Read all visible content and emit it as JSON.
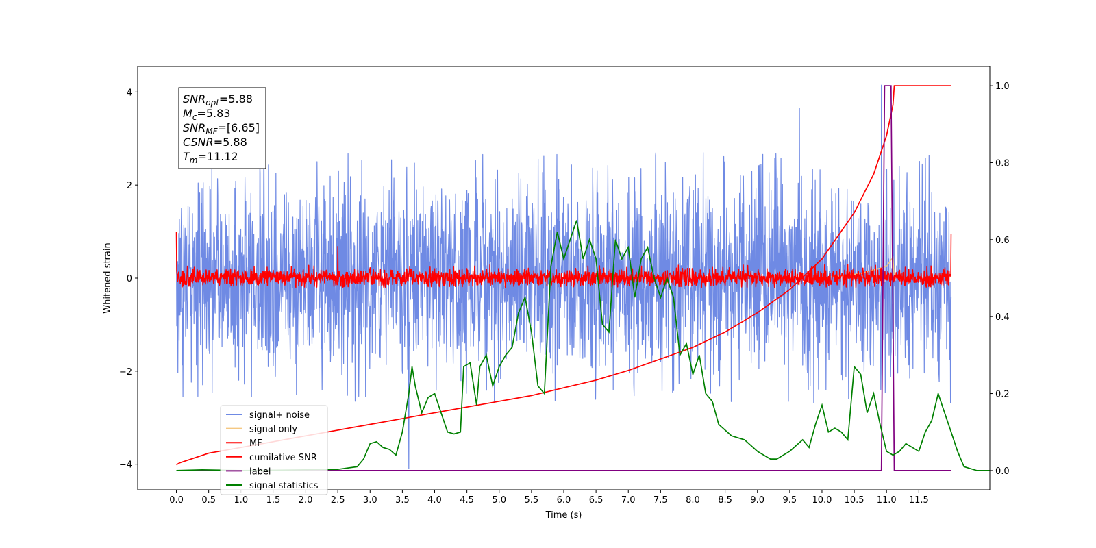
{
  "chart_data": {
    "type": "line",
    "title": "",
    "xlabel": "Time (s)",
    "ylabel": "Whitened strain",
    "y2label": "",
    "xlim": [
      -0.6,
      12.6
    ],
    "ylim": [
      -4.55,
      4.55
    ],
    "y2lim": [
      -0.05,
      1.05
    ],
    "x_ticks": [
      0.0,
      0.5,
      1.0,
      1.5,
      2.0,
      2.5,
      3.0,
      3.5,
      4.0,
      4.5,
      5.0,
      5.5,
      6.0,
      6.5,
      7.0,
      7.5,
      8.0,
      8.5,
      9.0,
      9.5,
      10.0,
      10.5,
      11.0,
      11.5
    ],
    "x_tick_labels": [
      "0.0",
      "0.5",
      "1.0",
      "1.5",
      "2.0",
      "2.5",
      "3.0",
      "3.5",
      "4.0",
      "4.5",
      "5.0",
      "5.5",
      "6.0",
      "6.5",
      "7.0",
      "7.5",
      "8.0",
      "8.5",
      "9.0",
      "9.5",
      "10.0",
      "10.5",
      "11.0",
      "11.5"
    ],
    "y_ticks": [
      4,
      2,
      0,
      -2,
      -4
    ],
    "y_tick_labels": [
      "4",
      "2",
      "0",
      "−2",
      "−4"
    ],
    "y2_ticks": [
      1.0,
      0.8,
      0.6,
      0.4,
      0.2,
      0.0
    ],
    "y2_tick_labels": [
      "1.0",
      "0.8",
      "0.6",
      "0.4",
      "0.2",
      "0.0"
    ],
    "grid": false,
    "legend_position": "lower-left",
    "series": [
      {
        "name": "signal+ noise",
        "axis": "left",
        "color": "#6f8ae4",
        "t_start": 0.0,
        "t_end": 12.0,
        "typical_range": [
          -2.7,
          2.7
        ],
        "extremes": [
          {
            "x": 10.92,
            "y": 4.15
          },
          {
            "x": 9.65,
            "y": 3.65
          },
          {
            "x": 3.6,
            "y": -4.1
          },
          {
            "x": 0.1,
            "y": -2.55
          }
        ]
      },
      {
        "name": "signal only",
        "axis": "left",
        "color": "#f5c882",
        "t_start": 0.0,
        "t_end": 12.0,
        "points": [
          [
            10.0,
            0.0
          ],
          [
            10.6,
            0.1
          ],
          [
            11.0,
            0.25
          ],
          [
            11.1,
            0.45
          ],
          [
            11.12,
            0.0
          ]
        ]
      },
      {
        "name": "MF",
        "axis": "left",
        "color": "#ff0000",
        "t_start": 0.0,
        "t_end": 12.0,
        "typical_range": [
          -0.2,
          0.3
        ],
        "extremes": [
          {
            "x": 0.0,
            "y": 1.0
          },
          {
            "x": 12.0,
            "y": 0.95
          },
          {
            "x": 2.5,
            "y": 0.68
          }
        ]
      },
      {
        "name": "cumilative SNR",
        "axis": "right",
        "color": "#ff0000",
        "points": [
          [
            0.0,
            0.015
          ],
          [
            0.05,
            0.02
          ],
          [
            0.5,
            0.045
          ],
          [
            1.0,
            0.06
          ],
          [
            1.5,
            0.075
          ],
          [
            2.0,
            0.09
          ],
          [
            2.5,
            0.105
          ],
          [
            3.0,
            0.12
          ],
          [
            3.5,
            0.135
          ],
          [
            4.0,
            0.15
          ],
          [
            4.5,
            0.165
          ],
          [
            5.0,
            0.18
          ],
          [
            5.5,
            0.195
          ],
          [
            6.0,
            0.215
          ],
          [
            6.5,
            0.235
          ],
          [
            7.0,
            0.26
          ],
          [
            7.5,
            0.29
          ],
          [
            8.0,
            0.32
          ],
          [
            8.5,
            0.36
          ],
          [
            9.0,
            0.41
          ],
          [
            9.5,
            0.47
          ],
          [
            10.0,
            0.55
          ],
          [
            10.5,
            0.67
          ],
          [
            10.8,
            0.77
          ],
          [
            11.0,
            0.87
          ],
          [
            11.1,
            0.95
          ],
          [
            11.12,
            1.0
          ],
          [
            12.0,
            1.0
          ]
        ]
      },
      {
        "name": "label",
        "axis": "right",
        "color": "#800080",
        "points": [
          [
            0.0,
            0.0
          ],
          [
            10.92,
            0.0
          ],
          [
            10.97,
            1.0
          ],
          [
            11.07,
            1.0
          ],
          [
            11.12,
            0.0
          ],
          [
            12.0,
            0.0
          ]
        ]
      },
      {
        "name": "signal statistics",
        "axis": "right",
        "color": "#008000",
        "points": [
          [
            0.0,
            0.0
          ],
          [
            0.4,
            0.002
          ],
          [
            1.0,
            0.0
          ],
          [
            2.0,
            0.002
          ],
          [
            2.5,
            0.003
          ],
          [
            2.8,
            0.01
          ],
          [
            2.9,
            0.03
          ],
          [
            3.0,
            0.07
          ],
          [
            3.1,
            0.075
          ],
          [
            3.2,
            0.06
          ],
          [
            3.3,
            0.055
          ],
          [
            3.4,
            0.04
          ],
          [
            3.5,
            0.1
          ],
          [
            3.6,
            0.2
          ],
          [
            3.65,
            0.27
          ],
          [
            3.7,
            0.22
          ],
          [
            3.8,
            0.15
          ],
          [
            3.9,
            0.19
          ],
          [
            4.0,
            0.2
          ],
          [
            4.1,
            0.15
          ],
          [
            4.2,
            0.1
          ],
          [
            4.3,
            0.095
          ],
          [
            4.4,
            0.1
          ],
          [
            4.45,
            0.27
          ],
          [
            4.55,
            0.28
          ],
          [
            4.65,
            0.17
          ],
          [
            4.7,
            0.27
          ],
          [
            4.8,
            0.3
          ],
          [
            4.9,
            0.22
          ],
          [
            5.0,
            0.27
          ],
          [
            5.1,
            0.3
          ],
          [
            5.2,
            0.32
          ],
          [
            5.3,
            0.41
          ],
          [
            5.4,
            0.45
          ],
          [
            5.5,
            0.36
          ],
          [
            5.6,
            0.22
          ],
          [
            5.7,
            0.2
          ],
          [
            5.8,
            0.53
          ],
          [
            5.9,
            0.62
          ],
          [
            6.0,
            0.55
          ],
          [
            6.1,
            0.6
          ],
          [
            6.2,
            0.65
          ],
          [
            6.3,
            0.55
          ],
          [
            6.4,
            0.6
          ],
          [
            6.5,
            0.55
          ],
          [
            6.6,
            0.38
          ],
          [
            6.7,
            0.36
          ],
          [
            6.8,
            0.6
          ],
          [
            6.9,
            0.55
          ],
          [
            7.0,
            0.58
          ],
          [
            7.1,
            0.45
          ],
          [
            7.2,
            0.55
          ],
          [
            7.3,
            0.58
          ],
          [
            7.4,
            0.5
          ],
          [
            7.5,
            0.45
          ],
          [
            7.6,
            0.5
          ],
          [
            7.7,
            0.45
          ],
          [
            7.8,
            0.3
          ],
          [
            7.9,
            0.33
          ],
          [
            8.0,
            0.25
          ],
          [
            8.1,
            0.3
          ],
          [
            8.2,
            0.2
          ],
          [
            8.3,
            0.18
          ],
          [
            8.4,
            0.12
          ],
          [
            8.6,
            0.09
          ],
          [
            8.8,
            0.08
          ],
          [
            9.0,
            0.05
          ],
          [
            9.2,
            0.03
          ],
          [
            9.3,
            0.03
          ],
          [
            9.5,
            0.05
          ],
          [
            9.7,
            0.08
          ],
          [
            9.8,
            0.06
          ],
          [
            9.9,
            0.12
          ],
          [
            10.0,
            0.17
          ],
          [
            10.1,
            0.1
          ],
          [
            10.2,
            0.11
          ],
          [
            10.3,
            0.1
          ],
          [
            10.4,
            0.08
          ],
          [
            10.5,
            0.27
          ],
          [
            10.6,
            0.25
          ],
          [
            10.7,
            0.15
          ],
          [
            10.8,
            0.2
          ],
          [
            10.85,
            0.16
          ],
          [
            10.9,
            0.12
          ],
          [
            11.0,
            0.05
          ],
          [
            11.1,
            0.04
          ],
          [
            11.2,
            0.05
          ],
          [
            11.3,
            0.07
          ],
          [
            11.4,
            0.06
          ],
          [
            11.5,
            0.05
          ],
          [
            11.6,
            0.1
          ],
          [
            11.7,
            0.13
          ],
          [
            11.8,
            0.2
          ],
          [
            11.9,
            0.15
          ],
          [
            12.0,
            0.1
          ],
          [
            12.1,
            0.05
          ],
          [
            12.2,
            0.01
          ],
          [
            12.4,
            0.0
          ],
          [
            13.0,
            0.0
          ]
        ]
      }
    ],
    "annotations": [
      {
        "base": "SNR",
        "sub": "opt",
        "value": "=5.88"
      },
      {
        "base": "M",
        "sub": "c",
        "value": "=5.83"
      },
      {
        "base": "SNR",
        "sub": "MF",
        "value": "=[6.65]"
      },
      {
        "base": "CSNR",
        "sub": "",
        "value": "=5.88"
      },
      {
        "base": "T",
        "sub": "m",
        "value": "=11.12"
      }
    ]
  }
}
